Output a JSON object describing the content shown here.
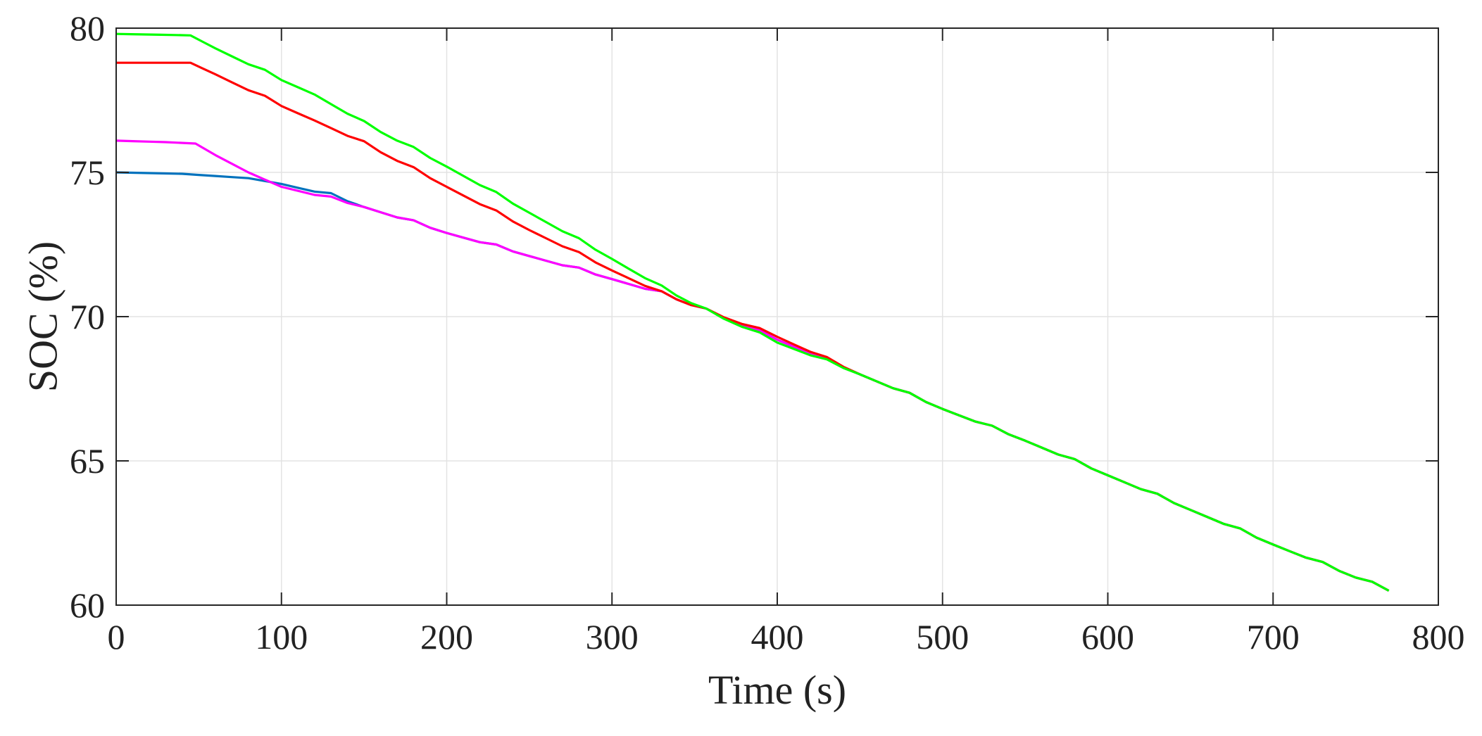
{
  "chart_data": {
    "type": "line",
    "xlabel": "Time (s)",
    "ylabel": "SOC (%)",
    "xlim": [
      0,
      800
    ],
    "ylim": [
      60,
      80
    ],
    "xticks": [
      0,
      100,
      200,
      300,
      400,
      500,
      600,
      700,
      800
    ],
    "yticks": [
      60,
      65,
      70,
      75,
      80
    ],
    "grid": true,
    "series": [
      {
        "color": "#0072bd",
        "points": [
          [
            0,
            75.0
          ],
          [
            40,
            74.95
          ],
          [
            80,
            74.8
          ],
          [
            100,
            74.6
          ],
          [
            130,
            74.2
          ],
          [
            150,
            73.8
          ],
          [
            200,
            72.9
          ],
          [
            250,
            72.1
          ],
          [
            300,
            71.3
          ],
          [
            330,
            70.8
          ],
          [
            357,
            70.2
          ],
          [
            400,
            69.2
          ],
          [
            450,
            68.0
          ],
          [
            500,
            66.8
          ],
          [
            550,
            65.7
          ],
          [
            600,
            64.5
          ],
          [
            650,
            63.3
          ],
          [
            700,
            62.1
          ],
          [
            770,
            60.5
          ]
        ]
      },
      {
        "color": "#ff00ff",
        "points": [
          [
            0,
            76.1
          ],
          [
            30,
            76.05
          ],
          [
            48,
            76.0
          ],
          [
            60,
            75.6
          ],
          [
            80,
            75.0
          ],
          [
            100,
            74.5
          ],
          [
            150,
            73.8
          ],
          [
            200,
            72.9
          ],
          [
            250,
            72.1
          ],
          [
            300,
            71.3
          ],
          [
            330,
            70.8
          ],
          [
            357,
            70.2
          ],
          [
            400,
            69.2
          ],
          [
            450,
            68.0
          ],
          [
            500,
            66.8
          ],
          [
            550,
            65.7
          ],
          [
            600,
            64.5
          ],
          [
            650,
            63.3
          ],
          [
            700,
            62.1
          ],
          [
            770,
            60.5
          ]
        ]
      },
      {
        "color": "#ff0000",
        "points": [
          [
            0,
            78.8
          ],
          [
            45,
            78.8
          ],
          [
            60,
            78.4
          ],
          [
            100,
            77.3
          ],
          [
            120,
            76.8
          ],
          [
            150,
            76.0
          ],
          [
            200,
            74.5
          ],
          [
            250,
            73.0
          ],
          [
            300,
            71.6
          ],
          [
            330,
            70.8
          ],
          [
            357,
            70.2
          ],
          [
            400,
            69.3
          ],
          [
            450,
            68.0
          ],
          [
            500,
            66.8
          ],
          [
            550,
            65.7
          ],
          [
            600,
            64.5
          ],
          [
            650,
            63.3
          ],
          [
            700,
            62.1
          ],
          [
            770,
            60.5
          ]
        ]
      },
      {
        "color": "#00ff00",
        "points": [
          [
            0,
            79.8
          ],
          [
            45,
            79.75
          ],
          [
            60,
            79.3
          ],
          [
            100,
            78.2
          ],
          [
            120,
            77.7
          ],
          [
            150,
            76.7
          ],
          [
            200,
            75.2
          ],
          [
            250,
            73.6
          ],
          [
            300,
            72.0
          ],
          [
            330,
            71.0
          ],
          [
            357,
            70.2
          ],
          [
            400,
            69.1
          ],
          [
            450,
            68.0
          ],
          [
            500,
            66.8
          ],
          [
            550,
            65.7
          ],
          [
            600,
            64.5
          ],
          [
            650,
            63.3
          ],
          [
            700,
            62.1
          ],
          [
            770,
            60.5
          ]
        ]
      }
    ]
  }
}
